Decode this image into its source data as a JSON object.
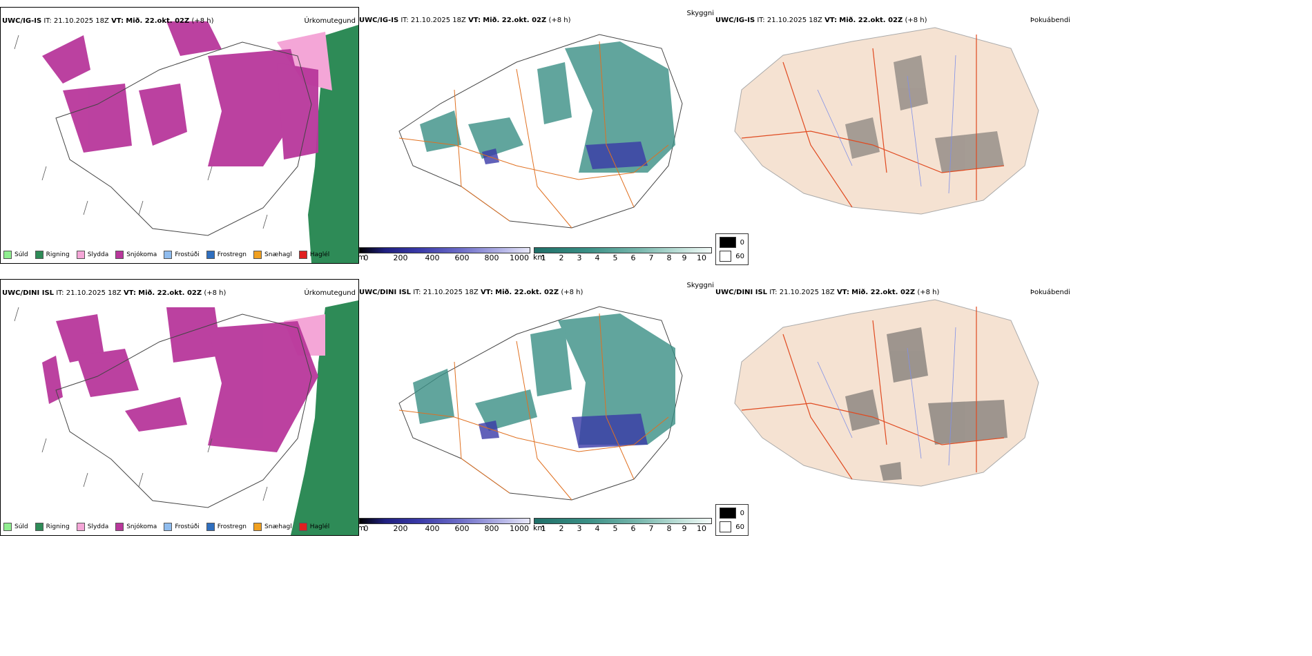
{
  "panels": [
    {
      "id": "ig-prec",
      "model": "UWC/IG-IS",
      "it_label": "IT:",
      "it": "21.10.2025 18Z",
      "vt_label": "VT:",
      "vt": "Mið. 22.okt. 02Z",
      "lead": "(+8 h)",
      "right": "Úrkomutegund"
    },
    {
      "id": "ig-cloud",
      "model": "UWC/IG-IS",
      "it_label": "IT:",
      "it": "21.10.2025 18Z",
      "vt_label": "VT:",
      "vt": "Mið. 22.okt. 02Z",
      "lead": "(+8 h)",
      "right": "Skyggni"
    },
    {
      "id": "ig-fog",
      "model": "UWC/IG-IS",
      "it_label": "IT:",
      "it": "21.10.2025 18Z",
      "vt_label": "VT:",
      "vt": "Mið. 22.okt. 02Z",
      "lead": "(+8 h)",
      "right": "Þokuábendi"
    },
    {
      "id": "dini-prec",
      "model": "UWC/DINI ISL",
      "it_label": "IT:",
      "it": "21.10.2025 18Z",
      "vt_label": "VT:",
      "vt": "Mið. 22.okt. 02Z",
      "lead": "(+8 h)",
      "right": "Úrkomutegund"
    },
    {
      "id": "dini-cloud",
      "model": "UWC/DINI ISL",
      "it_label": "IT:",
      "it": "21.10.2025 18Z",
      "vt_label": "VT:",
      "vt": "Mið. 22.okt. 02Z",
      "lead": "(+8 h)",
      "right": "Skyggni"
    },
    {
      "id": "dini-fog",
      "model": "UWC/DINI ISL",
      "it_label": "IT:",
      "it": "21.10.2025 18Z",
      "vt_label": "VT:",
      "vt": "Mið. 22.okt. 02Z",
      "lead": "(+8 h)",
      "right": "Þokuábendi"
    }
  ],
  "precip_legend": [
    {
      "label": "Súld",
      "color": "#90ee90"
    },
    {
      "label": "Rigning",
      "color": "#2e8b57"
    },
    {
      "label": "Slydda",
      "color": "#f4a6d7"
    },
    {
      "label": "Snjókoma",
      "color": "#b8379b"
    },
    {
      "label": "Frostúði",
      "color": "#8fbcee"
    },
    {
      "label": "Frostregn",
      "color": "#2f6fbf"
    },
    {
      "label": "Snæhagl",
      "color": "#f0a020"
    },
    {
      "label": "Haglél",
      "color": "#e02020"
    }
  ],
  "ceiling_bar": {
    "unit": "m",
    "ticks": [
      "0",
      "200",
      "400",
      "600",
      "800",
      "1000"
    ]
  },
  "vis_bar": {
    "unit": "km",
    "ticks": [
      "1",
      "2",
      "3",
      "4",
      "5",
      "6",
      "7",
      "8",
      "9",
      "10"
    ]
  },
  "fog_legend": {
    "high": "0",
    "low": "60"
  },
  "colors": {
    "snow": "#b8379b",
    "sleet": "#f4a6d7",
    "rain": "#2e8b57",
    "teal": "#3a8f85",
    "ceiling": "#3a3aa8",
    "land": "#f5e2d2",
    "roads": "#e07020",
    "rivers": "#7f8fe8"
  }
}
